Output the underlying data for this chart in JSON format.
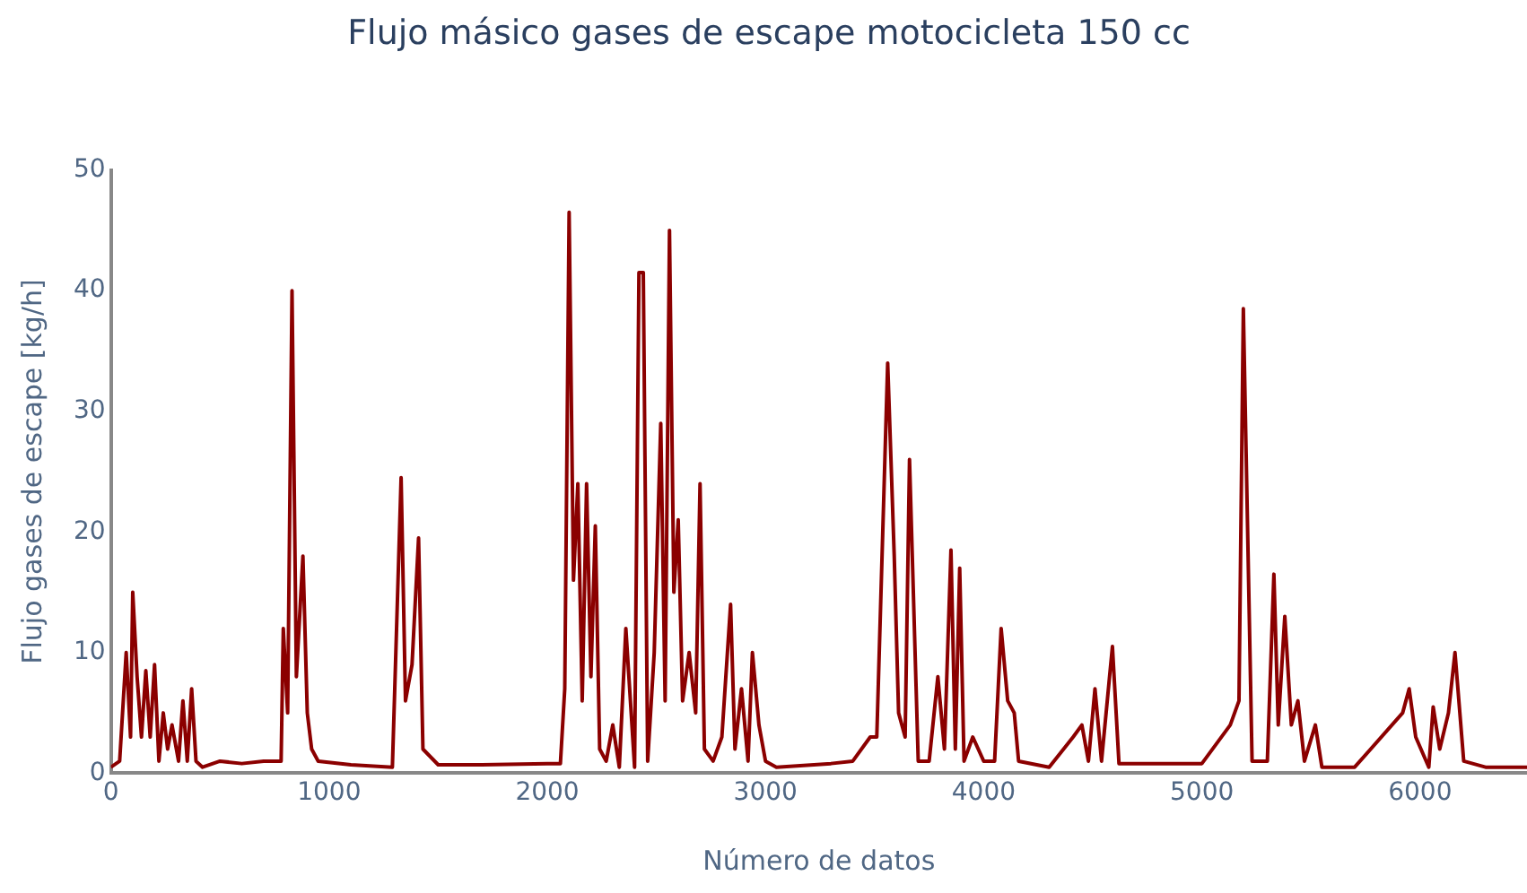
{
  "chart_data": {
    "type": "line",
    "title": "Flujo másico gases de escape motocicleta 150 cc",
    "xlabel": "Número de datos",
    "ylabel": "Flujo gases de escape [kg/h]",
    "xlim": [
      0,
      6490
    ],
    "xticks": [
      0,
      1000,
      2000,
      3000,
      4000,
      5000,
      6000
    ],
    "ylim": [
      0,
      50
    ],
    "yticks": [
      0,
      10,
      20,
      30,
      40,
      50
    ],
    "grid": false,
    "legend": false,
    "marker": "none",
    "line_style": "solid",
    "series": [
      {
        "color": "#8b0000",
        "x": [
          0,
          40,
          70,
          90,
          100,
          120,
          140,
          160,
          180,
          200,
          220,
          240,
          260,
          280,
          310,
          330,
          350,
          370,
          390,
          420,
          500,
          600,
          700,
          780,
          790,
          810,
          830,
          850,
          880,
          900,
          920,
          950,
          1100,
          1290,
          1330,
          1350,
          1380,
          1410,
          1430,
          1500,
          1700,
          2000,
          2060,
          2080,
          2100,
          2120,
          2140,
          2160,
          2180,
          2200,
          2220,
          2240,
          2270,
          2300,
          2330,
          2360,
          2400,
          2420,
          2440,
          2460,
          2490,
          2520,
          2540,
          2560,
          2580,
          2600,
          2620,
          2650,
          2680,
          2700,
          2720,
          2760,
          2800,
          2840,
          2860,
          2890,
          2920,
          2940,
          2970,
          3000,
          3050,
          3300,
          3400,
          3480,
          3510,
          3560,
          3590,
          3610,
          3640,
          3660,
          3700,
          3750,
          3790,
          3820,
          3850,
          3870,
          3890,
          3910,
          3950,
          4000,
          4050,
          4080,
          4110,
          4140,
          4160,
          4300,
          4410,
          4450,
          4480,
          4510,
          4540,
          4590,
          4620,
          4800,
          5000,
          5130,
          5170,
          5190,
          5230,
          5300,
          5330,
          5350,
          5380,
          5410,
          5440,
          5470,
          5520,
          5550,
          5700,
          5920,
          5950,
          5980,
          6040,
          6060,
          6090,
          6130,
          6160,
          6200,
          6300,
          6490
        ],
        "values": [
          0.5,
          1,
          10,
          3,
          15,
          8,
          3,
          8.5,
          3,
          9,
          1,
          5,
          2,
          4,
          1,
          6,
          1,
          7,
          1,
          0.5,
          1,
          0.8,
          1,
          1,
          12,
          5,
          40,
          8,
          18,
          5,
          2,
          1,
          0.7,
          0.5,
          24.5,
          6,
          9,
          19.5,
          2,
          0.7,
          0.7,
          0.8,
          0.8,
          7,
          46.5,
          16,
          24,
          6,
          24,
          8,
          20.5,
          2,
          1,
          4,
          0.5,
          12,
          0.5,
          41.5,
          41.5,
          1,
          10,
          29,
          6,
          45,
          15,
          21,
          6,
          10,
          5,
          24,
          2,
          1,
          3,
          14,
          2,
          7,
          1,
          10,
          4,
          1,
          0.5,
          0.8,
          1,
          3,
          3,
          34,
          18,
          5,
          3,
          26,
          1,
          1,
          8,
          2,
          18.5,
          2,
          17,
          1,
          3,
          1,
          1,
          12,
          6,
          5,
          1,
          0.5,
          3,
          4,
          1,
          7,
          1,
          10.5,
          0.8,
          0.8,
          0.8,
          4,
          6,
          38.5,
          1,
          1,
          16.5,
          4,
          13,
          4,
          6,
          1,
          4,
          0.5,
          0.5,
          5,
          7,
          3,
          0.5,
          5.5,
          2,
          5,
          10,
          1,
          0.5,
          0.5
        ]
      }
    ]
  }
}
